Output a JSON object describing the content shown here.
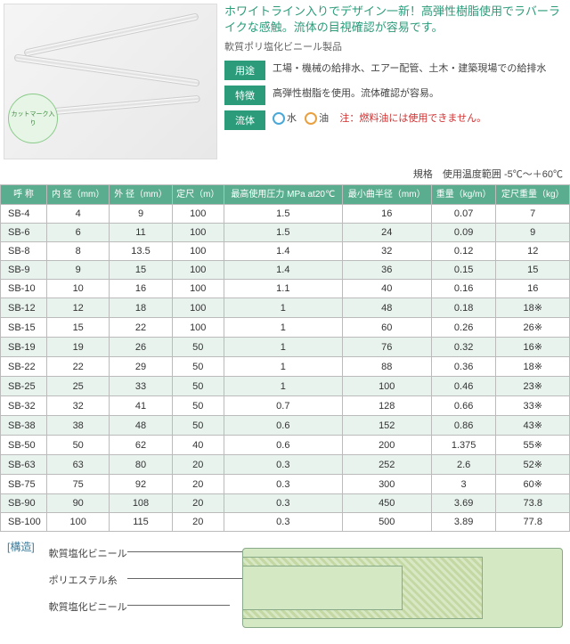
{
  "headline": "ホワイトライン入りでデザイン一新！高弾性樹脂使用でラバーライクな感触。流体の目視確認が容易です。",
  "subhead": "軟質ポリ塩化ビニール製品",
  "badge": "カットマーク入り",
  "specs": {
    "use_label": "用途",
    "use_text": "工場・機械の給排水、エアー配管、土木・建築現場での給排水",
    "feature_label": "特徴",
    "feature_text": "高弾性樹脂を使用。流体確認が容易。",
    "fluid_label": "流体",
    "fluid_water": "水",
    "fluid_oil": "油",
    "fluid_warn": "注：燃料油には使用できません。"
  },
  "standard": "規格　使用温度範囲 -5℃～＋60℃",
  "table": {
    "headers": [
      "呼 称",
      "内 径（mm）",
      "外 径（mm）",
      "定尺（m）",
      "最高使用圧力 MPa at20℃",
      "最小曲半径（mm）",
      "重量（kg/m）",
      "定尺重量（kg）"
    ],
    "rows": [
      [
        "SB-4",
        "4",
        "9",
        "100",
        "1.5",
        "16",
        "0.07",
        "7"
      ],
      [
        "SB-6",
        "6",
        "11",
        "100",
        "1.5",
        "24",
        "0.09",
        "9"
      ],
      [
        "SB-8",
        "8",
        "13.5",
        "100",
        "1.4",
        "32",
        "0.12",
        "12"
      ],
      [
        "SB-9",
        "9",
        "15",
        "100",
        "1.4",
        "36",
        "0.15",
        "15"
      ],
      [
        "SB-10",
        "10",
        "16",
        "100",
        "1.1",
        "40",
        "0.16",
        "16"
      ],
      [
        "SB-12",
        "12",
        "18",
        "100",
        "1",
        "48",
        "0.18",
        "18※"
      ],
      [
        "SB-15",
        "15",
        "22",
        "100",
        "1",
        "60",
        "0.26",
        "26※"
      ],
      [
        "SB-19",
        "19",
        "26",
        "50",
        "1",
        "76",
        "0.32",
        "16※"
      ],
      [
        "SB-22",
        "22",
        "29",
        "50",
        "1",
        "88",
        "0.36",
        "18※"
      ],
      [
        "SB-25",
        "25",
        "33",
        "50",
        "1",
        "100",
        "0.46",
        "23※"
      ],
      [
        "SB-32",
        "32",
        "41",
        "50",
        "0.7",
        "128",
        "0.66",
        "33※"
      ],
      [
        "SB-38",
        "38",
        "48",
        "50",
        "0.6",
        "152",
        "0.86",
        "43※"
      ],
      [
        "SB-50",
        "50",
        "62",
        "40",
        "0.6",
        "200",
        "1.375",
        "55※"
      ],
      [
        "SB-63",
        "63",
        "80",
        "20",
        "0.3",
        "252",
        "2.6",
        "52※"
      ],
      [
        "SB-75",
        "75",
        "92",
        "20",
        "0.3",
        "300",
        "3",
        "60※"
      ],
      [
        "SB-90",
        "90",
        "108",
        "20",
        "0.3",
        "450",
        "3.69",
        "73.8"
      ],
      [
        "SB-100",
        "100",
        "115",
        "20",
        "0.3",
        "500",
        "3.89",
        "77.8"
      ]
    ]
  },
  "structure": {
    "label": "[構造]",
    "layers": [
      "軟質塩化ビニール",
      "ポリエステル糸",
      "軟質塩化ビニール"
    ]
  }
}
